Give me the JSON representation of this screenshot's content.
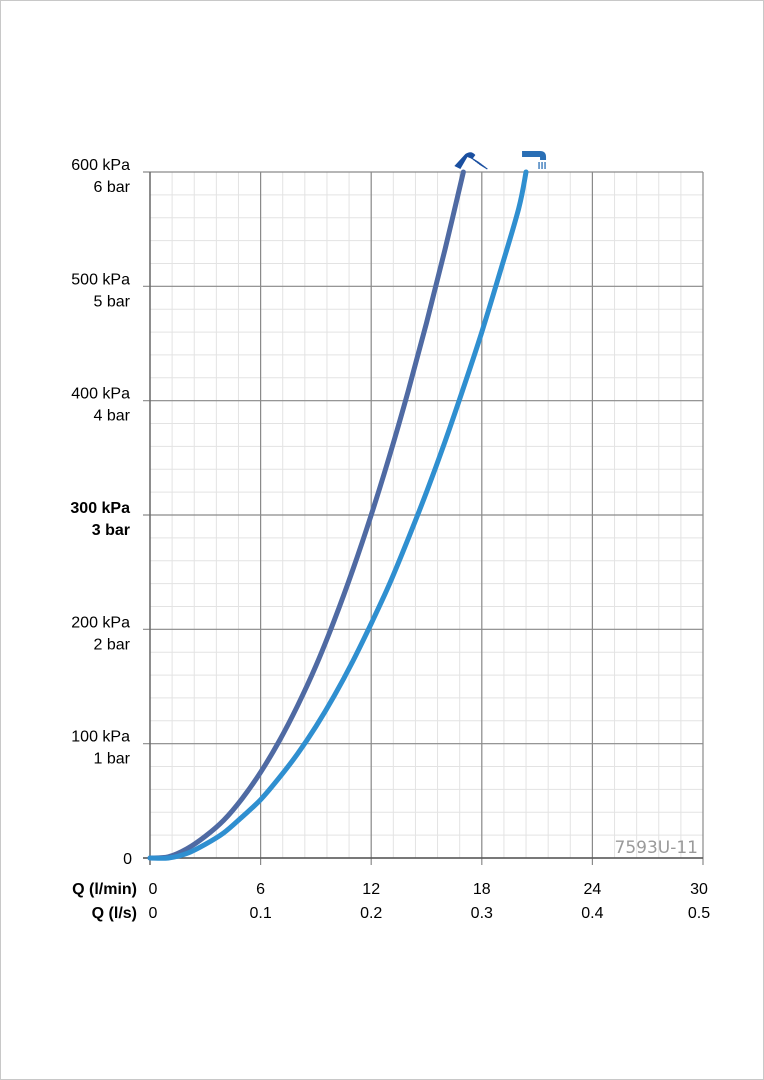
{
  "chart_data": {
    "type": "line",
    "title": "",
    "watermark": "7593U-11",
    "x_axis": {
      "range": [
        0,
        30
      ],
      "ticks_l_min": {
        "label": "Q (l/min)",
        "values": [
          "0",
          "6",
          "12",
          "18",
          "24",
          "30"
        ]
      },
      "ticks_l_s": {
        "label": "Q (l/s)",
        "values": [
          "0",
          "0.1",
          "0.2",
          "0.3",
          "0.4",
          "0.5"
        ]
      },
      "minor_step": 1.2
    },
    "y_axis": {
      "range": [
        0,
        600
      ],
      "ticks": [
        {
          "value": 0,
          "kpa": "0",
          "bar": ""
        },
        {
          "value": 100,
          "kpa": "100 kPa",
          "bar": "1 bar"
        },
        {
          "value": 200,
          "kpa": "200 kPa",
          "bar": "2 bar"
        },
        {
          "value": 300,
          "kpa": "300 kPa",
          "bar": "3 bar",
          "bold": true
        },
        {
          "value": 400,
          "kpa": "400 kPa",
          "bar": "4 bar"
        },
        {
          "value": 500,
          "kpa": "500 kPa",
          "bar": "5 bar"
        },
        {
          "value": 600,
          "kpa": "600 kPa",
          "bar": "6 bar"
        }
      ],
      "minor_step": 20
    },
    "grid": true,
    "series": [
      {
        "icon": "hand-shower-icon",
        "color": "#4f6aa3",
        "x": [
          0,
          1,
          2,
          3,
          4,
          5,
          6,
          7,
          8,
          9,
          10,
          11,
          12,
          13,
          14,
          15,
          16,
          17
        ],
        "y": [
          0,
          1,
          8,
          19,
          33,
          52,
          75,
          102,
          133,
          168,
          208,
          252,
          300,
          352,
          408,
          468,
          532,
          600
        ]
      },
      {
        "icon": "bath-spout-icon",
        "color": "#2f8fd0",
        "x": [
          0,
          1,
          2,
          3,
          4,
          5,
          6,
          7,
          8,
          9,
          10,
          11,
          12,
          13,
          14,
          15,
          16,
          17,
          18,
          19,
          20,
          20.4
        ],
        "y": [
          0,
          0,
          4,
          12,
          22,
          36,
          51,
          70,
          91,
          115,
          142,
          172,
          205,
          240,
          279,
          320,
          364,
          411,
          460,
          513,
          568,
          600
        ]
      }
    ]
  }
}
